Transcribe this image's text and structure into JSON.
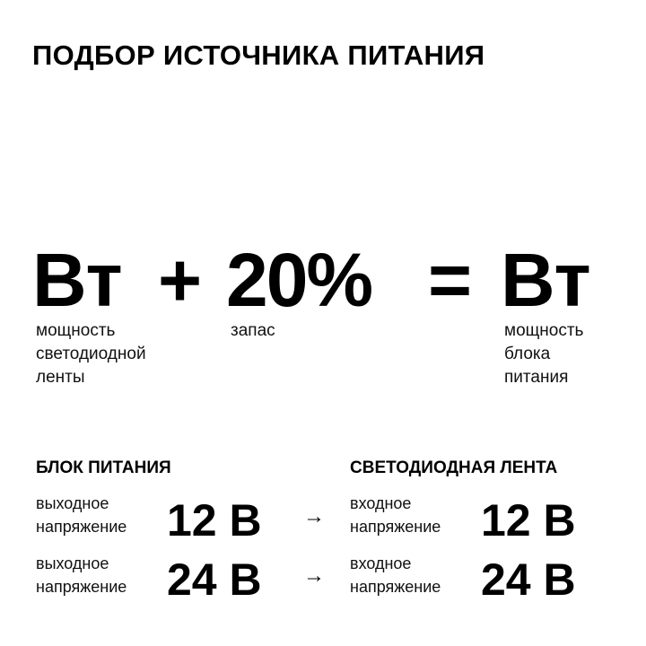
{
  "title": "ПОДБОР ИСТОЧНИКА ПИТАНИЯ",
  "formula": {
    "term1": "Вт",
    "plus": "+",
    "term2": "20%",
    "equals": "=",
    "result": "Вт",
    "label1": [
      "мощность",
      "светодиодной",
      "ленты"
    ],
    "label2": [
      "запас"
    ],
    "label3": [
      "мощность",
      "блока",
      "питания"
    ]
  },
  "power_supply": {
    "header": "БЛОК ПИТАНИЯ",
    "rows": [
      {
        "label": [
          "выходное",
          "напряжение"
        ],
        "value": "12 В"
      },
      {
        "label": [
          "выходное",
          "напряжение"
        ],
        "value": "24 В"
      }
    ]
  },
  "arrow": "→",
  "led_strip": {
    "header": "СВЕТОДИОДНАЯ ЛЕНТА",
    "rows": [
      {
        "label": [
          "входное",
          "напряжение"
        ],
        "value": "12 В"
      },
      {
        "label": [
          "входное",
          "напряжение"
        ],
        "value": "24 В"
      }
    ]
  }
}
